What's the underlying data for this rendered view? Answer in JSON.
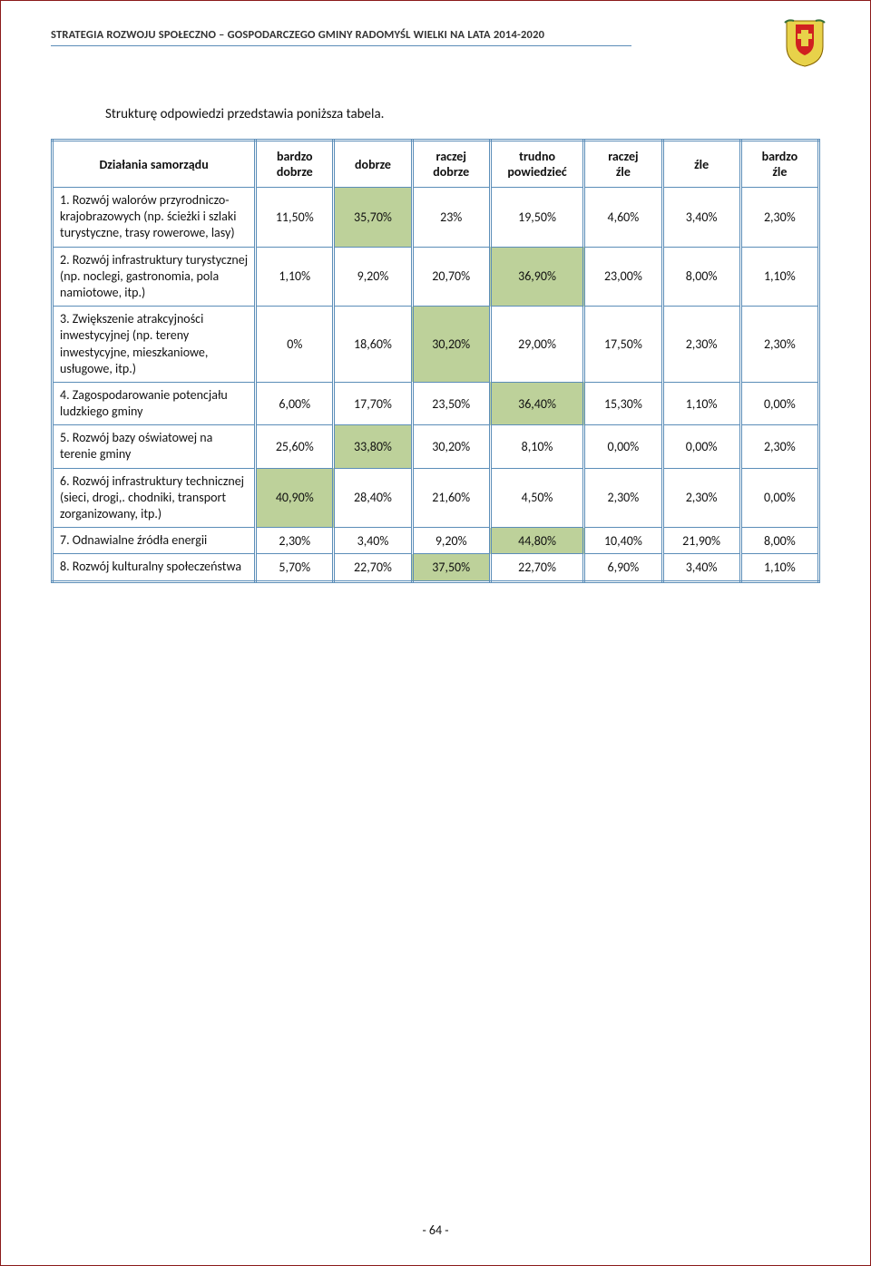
{
  "header": {
    "title": "STRATEGIA ROZWOJU SPOŁECZNO – GOSPODARCZEGO GMINY RADOMYŚL WIELKI NA LATA 2014-2020"
  },
  "intro": "Strukturę odpowiedzi przedstawia poniższa tabela.",
  "table": {
    "columns": [
      "Działania samorządu",
      "bardzo dobrze",
      "dobrze",
      "raczej dobrze",
      "trudno powiedzieć",
      "raczej źle",
      "źle",
      "bardzo źle"
    ],
    "col_widths": [
      "26%",
      "10%",
      "10%",
      "10%",
      "12%",
      "10%",
      "10%",
      "10%"
    ],
    "highlight_color": "#bdd19a",
    "rows": [
      {
        "label": "1. Rozwój walorów przyrodniczo-krajobrazowych (np. ścieżki i szlaki turystyczne, trasy rowerowe, lasy)",
        "values": [
          "11,50%",
          "35,70%",
          "23%",
          "19,50%",
          "4,60%",
          "3,40%",
          "2,30%"
        ],
        "highlight": [
          1
        ]
      },
      {
        "label": "2. Rozwój infrastruktury turystycznej (np. noclegi, gastronomia, pola namiotowe, itp.)",
        "values": [
          "1,10%",
          "9,20%",
          "20,70%",
          "36,90%",
          "23,00%",
          "8,00%",
          "1,10%"
        ],
        "highlight": [
          3
        ]
      },
      {
        "label": "3. Zwiększenie atrakcyjności inwestycyjnej (np. tereny inwestycyjne, mieszkaniowe, usługowe, itp.)",
        "values": [
          "0%",
          "18,60%",
          "30,20%",
          "29,00%",
          "17,50%",
          "2,30%",
          "2,30%"
        ],
        "highlight": [
          2
        ]
      },
      {
        "label": "4. Zagospodarowanie potencjału ludzkiego gminy",
        "values": [
          "6,00%",
          "17,70%",
          "23,50%",
          "36,40%",
          "15,30%",
          "1,10%",
          "0,00%"
        ],
        "highlight": [
          3
        ]
      },
      {
        "label": "5. Rozwój bazy oświatowej na terenie gminy",
        "values": [
          "25,60%",
          "33,80%",
          "30,20%",
          "8,10%",
          "0,00%",
          "0,00%",
          "2,30%"
        ],
        "highlight": [
          1
        ]
      },
      {
        "label": "6. Rozwój infrastruktury technicznej (sieci, drogi,. chodniki, transport zorganizowany, itp.)",
        "values": [
          "40,90%",
          "28,40%",
          "21,60%",
          "4,50%",
          "2,30%",
          "2,30%",
          "0,00%"
        ],
        "highlight": [
          0
        ]
      },
      {
        "label": "7. Odnawialne źródła energii",
        "values": [
          "2,30%",
          "3,40%",
          "9,20%",
          "44,80%",
          "10,40%",
          "21,90%",
          "8,00%"
        ],
        "highlight": [
          3
        ]
      },
      {
        "label": "8. Rozwój kulturalny społeczeństwa",
        "values": [
          "5,70%",
          "22,70%",
          "37,50%",
          "22,70%",
          "6,90%",
          "3,40%",
          "1,10%"
        ],
        "highlight": [
          2
        ]
      }
    ]
  },
  "footer": "- 64 -"
}
